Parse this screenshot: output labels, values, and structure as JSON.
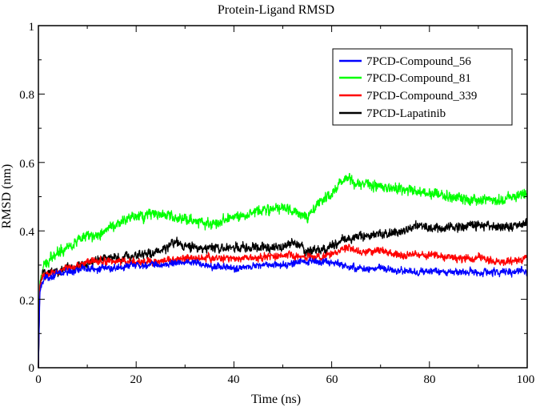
{
  "chart_data": {
    "type": "line",
    "title": "Protein-Ligand RMSD",
    "xlabel": "Time (ns)",
    "ylabel": "RMSD (nm)",
    "xlim": [
      0,
      100
    ],
    "ylim": [
      0,
      1
    ],
    "xticks": [
      "0",
      "20",
      "40",
      "60",
      "80",
      "100"
    ],
    "yticks": [
      "0",
      "0.2",
      "0.4",
      "0.6",
      "0.8",
      "1"
    ],
    "legend_position": "top-right",
    "series": [
      {
        "name": "7PCD-Compound_56",
        "color": "#0000ff",
        "noise": 0.012,
        "x": [
          0,
          0.3,
          1,
          3,
          6,
          10,
          15,
          20,
          25,
          30,
          35,
          40,
          45,
          50,
          55,
          60,
          62,
          65,
          70,
          75,
          80,
          85,
          90,
          95,
          100
        ],
        "values": [
          0.0,
          0.22,
          0.26,
          0.27,
          0.28,
          0.29,
          0.29,
          0.3,
          0.3,
          0.31,
          0.3,
          0.29,
          0.3,
          0.3,
          0.31,
          0.31,
          0.3,
          0.29,
          0.29,
          0.28,
          0.28,
          0.28,
          0.28,
          0.28,
          0.28
        ]
      },
      {
        "name": "7PCD-Compound_81",
        "color": "#00ff00",
        "noise": 0.018,
        "x": [
          0,
          0.3,
          1,
          3,
          5,
          8,
          12,
          16,
          20,
          24,
          28,
          32,
          36,
          40,
          45,
          50,
          55,
          58,
          61,
          63,
          65,
          70,
          75,
          80,
          85,
          90,
          95,
          100
        ],
        "values": [
          0.0,
          0.25,
          0.29,
          0.33,
          0.35,
          0.37,
          0.39,
          0.42,
          0.44,
          0.45,
          0.44,
          0.43,
          0.42,
          0.44,
          0.46,
          0.47,
          0.44,
          0.49,
          0.52,
          0.56,
          0.54,
          0.53,
          0.52,
          0.51,
          0.5,
          0.49,
          0.49,
          0.51
        ]
      },
      {
        "name": "7PCD-Compound_339",
        "color": "#ff0000",
        "noise": 0.013,
        "x": [
          0,
          0.3,
          1,
          3,
          6,
          10,
          15,
          20,
          25,
          30,
          35,
          40,
          45,
          50,
          55,
          60,
          63,
          65,
          70,
          75,
          80,
          85,
          90,
          95,
          100
        ],
        "values": [
          0.0,
          0.24,
          0.27,
          0.28,
          0.29,
          0.31,
          0.31,
          0.31,
          0.31,
          0.32,
          0.32,
          0.32,
          0.32,
          0.33,
          0.32,
          0.33,
          0.35,
          0.34,
          0.34,
          0.33,
          0.33,
          0.32,
          0.32,
          0.31,
          0.32
        ]
      },
      {
        "name": "7PCD-Lapatinib",
        "color": "#000000",
        "noise": 0.016,
        "x": [
          0,
          0.3,
          1,
          3,
          6,
          10,
          15,
          20,
          25,
          28,
          30,
          35,
          40,
          45,
          50,
          52,
          55,
          58,
          62,
          65,
          70,
          75,
          78,
          80,
          85,
          90,
          95,
          100
        ],
        "values": [
          0.0,
          0.24,
          0.28,
          0.28,
          0.29,
          0.31,
          0.32,
          0.33,
          0.34,
          0.37,
          0.35,
          0.35,
          0.35,
          0.35,
          0.35,
          0.37,
          0.34,
          0.34,
          0.37,
          0.38,
          0.39,
          0.4,
          0.42,
          0.41,
          0.41,
          0.42,
          0.41,
          0.42
        ]
      }
    ]
  }
}
